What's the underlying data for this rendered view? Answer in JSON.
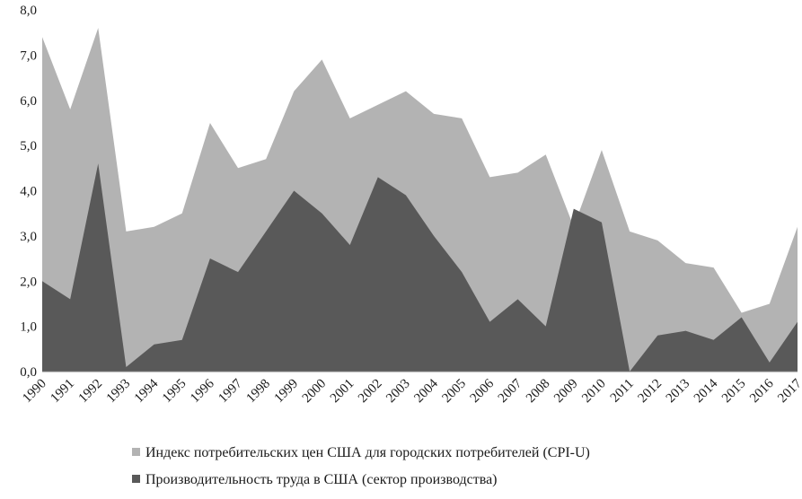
{
  "chart_data": {
    "type": "area",
    "title": "",
    "xlabel": "",
    "ylabel": "",
    "ylim": [
      0,
      8
    ],
    "y_ticks": [
      "0,0",
      "1,0",
      "2,0",
      "3,0",
      "4,0",
      "5,0",
      "6,0",
      "7,0",
      "8,0"
    ],
    "x": [
      "1990",
      "1991",
      "1992",
      "1993",
      "1994",
      "1995",
      "1996",
      "1997",
      "1998",
      "1999",
      "2000",
      "2001",
      "2002",
      "2003",
      "2004",
      "2005",
      "2006",
      "2007",
      "2008",
      "2009",
      "2010",
      "2011",
      "2012",
      "2013",
      "2014",
      "2015",
      "2016",
      "2017"
    ],
    "grid": false,
    "legend_position": "bottom",
    "series": [
      {
        "name": "Индекс потребительских цен США для городских потребителей (CPI-U)",
        "color": "#b3b3b3",
        "values": [
          7.4,
          5.8,
          7.6,
          3.1,
          3.2,
          3.5,
          5.5,
          4.5,
          4.7,
          6.2,
          6.9,
          5.6,
          5.9,
          6.2,
          5.7,
          5.6,
          4.3,
          4.4,
          4.8,
          3.2,
          4.9,
          3.1,
          2.9,
          2.4,
          2.3,
          1.3,
          1.5,
          3.2
        ]
      },
      {
        "name": "Производительность труда в США (сектор производства)",
        "color": "#595959",
        "values": [
          2.0,
          1.6,
          4.6,
          0.1,
          0.6,
          0.7,
          2.5,
          2.2,
          3.1,
          4.0,
          3.5,
          2.8,
          4.3,
          3.9,
          3.0,
          2.2,
          1.1,
          1.6,
          1.0,
          3.6,
          3.3,
          0.0,
          0.8,
          0.9,
          0.7,
          1.2,
          0.2,
          1.1
        ]
      }
    ]
  }
}
